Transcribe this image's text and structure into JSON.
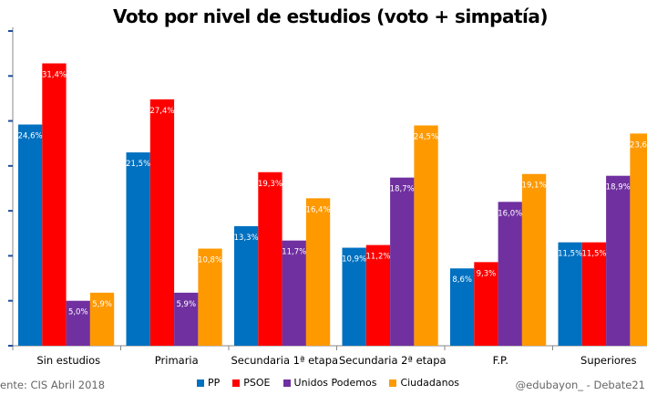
{
  "chart_data": {
    "type": "bar",
    "title": "Voto por nivel de estudios (voto + simpatía)",
    "categories": [
      "Sin estudios",
      "Primaria",
      "Secundaria 1ª etapa",
      "Secundaria 2ª etapa",
      "F.P.",
      "Superiores"
    ],
    "series": [
      {
        "name": "PP",
        "color": "#0070C0",
        "values": [
          24.6,
          21.5,
          13.3,
          10.9,
          8.6,
          11.5
        ]
      },
      {
        "name": "PSOE",
        "color": "#FF0000",
        "values": [
          31.4,
          27.4,
          19.3,
          11.2,
          9.3,
          11.5
        ]
      },
      {
        "name": "Unidos Podemos",
        "color": "#7030A0",
        "values": [
          5.0,
          5.9,
          11.7,
          18.7,
          16.0,
          18.9
        ]
      },
      {
        "name": "Ciudadanos",
        "color": "#FF9900",
        "values": [
          5.9,
          10.8,
          16.4,
          24.5,
          19.1,
          23.6
        ]
      }
    ],
    "ylim": [
      0,
      35
    ],
    "ytick_step": 5,
    "value_format": "percent with comma decimal",
    "grid": false,
    "legend": "bottom"
  },
  "footer": {
    "source": "ente: CIS Abril 2018",
    "credit": "@edubayon_ - Debate21"
  }
}
